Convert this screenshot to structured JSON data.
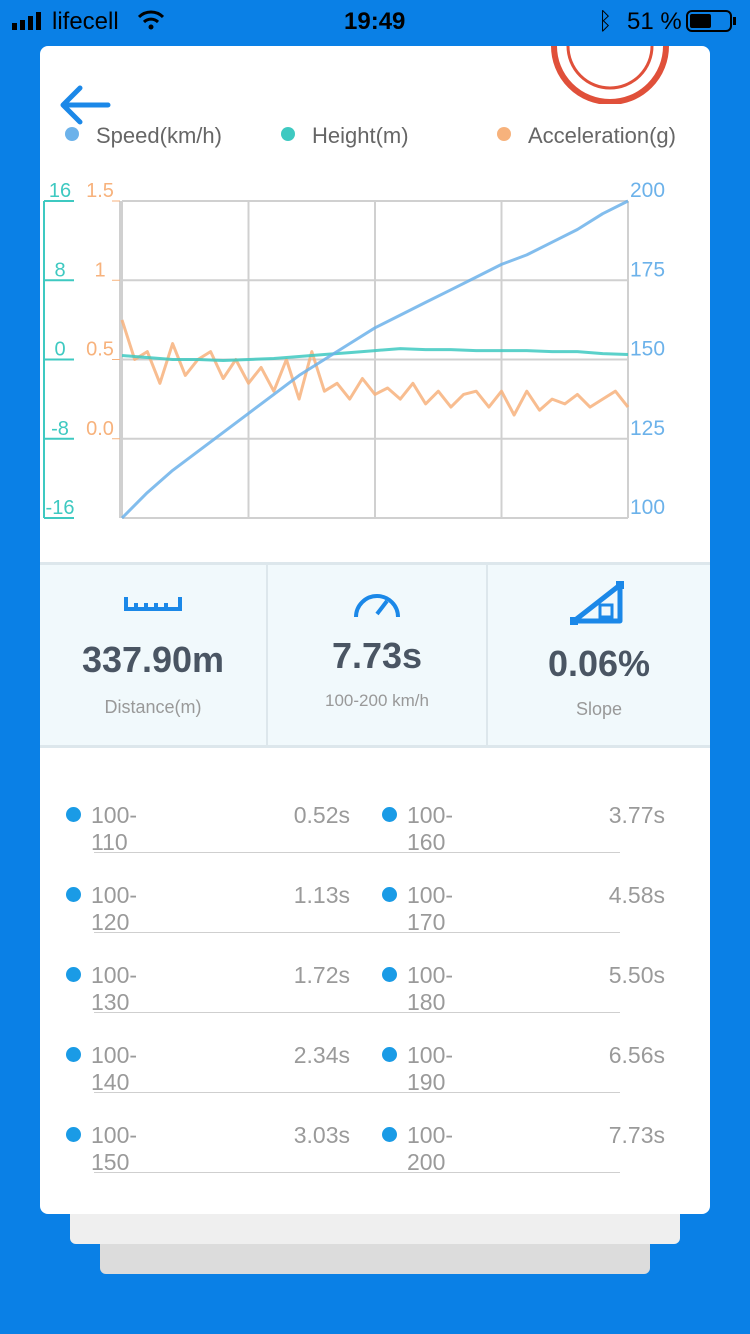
{
  "status_bar": {
    "carrier": "lifecell",
    "time": "19:49",
    "battery": "51 %"
  },
  "chart_data": {
    "type": "line",
    "series": [
      {
        "name": "Speed(km/h)",
        "color": "#6cb2ea",
        "axis": "y2",
        "values": [
          100,
          108,
          115,
          121,
          127,
          133,
          139,
          145,
          150,
          155,
          160,
          164,
          168,
          172,
          176,
          180,
          183,
          187,
          191,
          196,
          200
        ]
      },
      {
        "name": "Height(m)",
        "color": "#3ec9c1",
        "values": [
          0.4,
          0.2,
          0,
          0,
          -0.1,
          0,
          0.1,
          0.3,
          0.5,
          0.7,
          0.9,
          1.1,
          1.0,
          1.0,
          0.9,
          0.9,
          0.9,
          0.8,
          0.8,
          0.6,
          0.5
        ]
      },
      {
        "name": "Acceleration(g)",
        "color": "#f7b27c",
        "axis": "y3",
        "values": [
          0.75,
          0.5,
          0.55,
          0.35,
          0.6,
          0.4,
          0.5,
          0.55,
          0.38,
          0.5,
          0.35,
          0.45,
          0.3,
          0.5,
          0.25,
          0.55,
          0.3,
          0.35,
          0.25,
          0.38,
          0.28,
          0.32,
          0.25,
          0.35,
          0.22,
          0.3,
          0.2,
          0.28,
          0.3,
          0.2,
          0.3,
          0.15,
          0.3,
          0.18,
          0.25,
          0.22,
          0.28,
          0.2,
          0.25,
          0.3,
          0.2
        ]
      }
    ],
    "ylim": [
      -16,
      16
    ],
    "yticks": [
      16,
      8,
      0,
      -8,
      -16
    ],
    "y2lim": [
      100,
      200
    ],
    "y2ticks": [
      200,
      175,
      150,
      125,
      100
    ],
    "y3lim": [
      -0.5,
      1.5
    ],
    "y3ticks": [
      1.5,
      1,
      0.5,
      {
        "value": 0,
        "label": "0.0"
      }
    ],
    "grid": true
  },
  "stats": [
    {
      "value": "337.90m",
      "label": "Distance(m)"
    },
    {
      "value": "7.73s",
      "label": "100-200 km/h"
    },
    {
      "value": "0.06%",
      "label": "Slope"
    }
  ],
  "splits": [
    {
      "range": "100-110",
      "time": "0.52s"
    },
    {
      "range": "100-120",
      "time": "1.13s"
    },
    {
      "range": "100-130",
      "time": "1.72s"
    },
    {
      "range": "100-140",
      "time": "2.34s"
    },
    {
      "range": "100-150",
      "time": "3.03s"
    },
    {
      "range": "100-160",
      "time": "3.77s"
    },
    {
      "range": "100-170",
      "time": "4.58s"
    },
    {
      "range": "100-180",
      "time": "5.50s"
    },
    {
      "range": "100-190",
      "time": "6.56s"
    },
    {
      "range": "100-200",
      "time": "7.73s"
    }
  ]
}
